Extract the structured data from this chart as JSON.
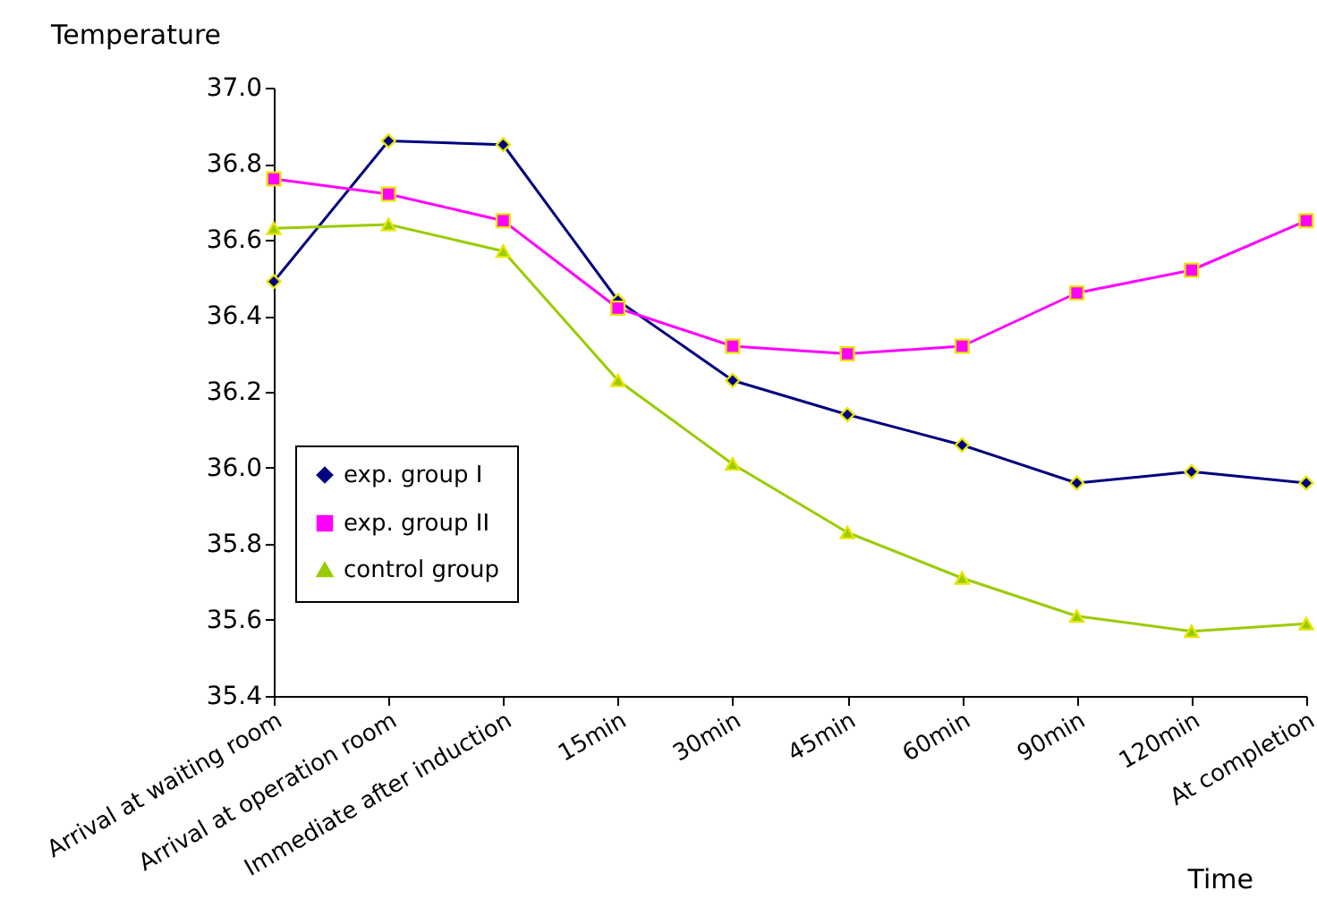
{
  "chart_data": {
    "type": "line",
    "xlabel": "Time",
    "ylabel": "Temperature",
    "categories": [
      "Arrival at waiting room",
      "Arrival at operation room",
      "Immediate after induction",
      "15min",
      "30min",
      "45min",
      "60min",
      "90min",
      "120min",
      "At completion"
    ],
    "series": [
      {
        "name": "exp. group I",
        "color": "#000080",
        "marker": "diamond",
        "values": [
          36.49,
          36.86,
          36.85,
          36.44,
          36.23,
          36.14,
          36.06,
          35.96,
          35.99,
          35.96
        ]
      },
      {
        "name": "exp. group II",
        "color": "#ff00ff",
        "marker": "square",
        "values": [
          36.76,
          36.72,
          36.65,
          36.42,
          36.32,
          36.3,
          36.32,
          36.46,
          36.52,
          36.65
        ]
      },
      {
        "name": "control group",
        "color": "#99cc00",
        "marker": "triangle",
        "values": [
          36.63,
          36.64,
          36.57,
          36.23,
          36.01,
          35.83,
          35.71,
          35.61,
          35.57,
          35.59
        ]
      }
    ],
    "ylim": [
      35.4,
      37.0
    ],
    "yticks": [
      35.4,
      35.6,
      35.8,
      {
        "value": 36,
        "label": "36.0"
      },
      36.2,
      36.4,
      36.6,
      36.8,
      {
        "value": 37,
        "label": "37.0"
      }
    ],
    "grid": false,
    "legend": "bottom left",
    "line_style": "solid"
  }
}
